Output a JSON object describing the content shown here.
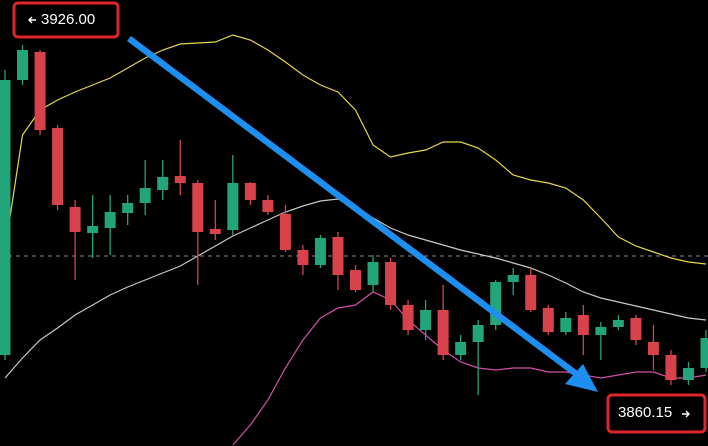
{
  "chart_data": {
    "type": "candlestick",
    "categories": [
      null,
      null,
      null,
      null,
      null,
      null,
      null,
      null,
      null,
      null,
      null,
      null,
      null,
      null,
      null,
      null,
      null,
      null,
      null,
      null,
      null,
      null,
      null,
      null,
      null,
      null,
      null,
      null,
      null,
      null,
      null,
      null,
      null,
      null,
      null,
      null,
      null,
      null,
      null,
      null,
      null
    ],
    "open": [
      3864,
      3919,
      3924.6,
      3909.4,
      3893.6,
      3888.4,
      3889.4,
      3892.4,
      3894.4,
      3897,
      3899.8,
      3898.4,
      3889.2,
      3889,
      3898.4,
      3895,
      3892.2,
      3885,
      3882,
      3887.6,
      3881,
      3878,
      3882.6,
      3874,
      3869,
      3873,
      3864,
      3866.6,
      3870,
      3878.6,
      3880,
      3873.4,
      3868.6,
      3872,
      3868,
      3869.6,
      3871.4,
      3866.6,
      3864,
      3859,
      3861.4
    ],
    "high": [
      3921,
      3926,
      3925,
      3910,
      3895,
      3896,
      3896,
      3896,
      3903,
      3903,
      3907,
      3899,
      3895,
      3904,
      3898.6,
      3896,
      3894,
      3886,
      3888,
      3888.6,
      3882,
      3884,
      3883.4,
      3875,
      3875,
      3878,
      3868,
      3871,
      3879,
      3881.4,
      3881.4,
      3874,
      3872.6,
      3874,
      3870.6,
      3872,
      3872,
      3870,
      3865,
      3862.6,
      3869
    ],
    "low": [
      3863,
      3918,
      3908,
      3893,
      3879,
      3883.4,
      3884,
      3890,
      3892,
      3895,
      3896,
      3878,
      3887,
      3888,
      3894,
      3892,
      3884.6,
      3880,
      3881.4,
      3877,
      3876.6,
      3876.6,
      3873,
      3868,
      3867,
      3863,
      3863,
      3856,
      3869,
      3876,
      3872.6,
      3868,
      3868,
      3864,
      3863,
      3869,
      3866,
      3861,
      3858,
      3858,
      3860.6
    ],
    "close": [
      3919,
      3925,
      3909,
      3894,
      3888.6,
      3889.8,
      3892.6,
      3894.4,
      3897.4,
      3899.6,
      3898.4,
      3888.6,
      3888.2,
      3898.4,
      3895,
      3892.6,
      3885,
      3882,
      3887.4,
      3880,
      3877,
      3882.6,
      3874,
      3869,
      3873,
      3864,
      3866.6,
      3870,
      3878.6,
      3880,
      3873,
      3868.6,
      3871.4,
      3868,
      3869.6,
      3871,
      3867,
      3864,
      3859,
      3861.4,
      3867.4
    ],
    "up_color": "#22a57a",
    "down_color": "#d8434b",
    "lines": [
      {
        "color": "#e3d74a",
        "values": [
          3885,
          3908,
          3913,
          3915,
          3916.6,
          3918,
          3919.4,
          3921.4,
          3923.4,
          3925,
          3926.2,
          3926.4,
          3926.6,
          3928,
          3927,
          3925,
          3922.6,
          3920,
          3918,
          3916.6,
          3913,
          3906,
          3903.6,
          3904.4,
          3905,
          3906.6,
          3906.6,
          3905.4,
          3903,
          3900,
          3899,
          3898.4,
          3897.4,
          3895,
          3891.4,
          3887.6,
          3885.8,
          3884.6,
          3883.4,
          3882.6,
          3882.2
        ]
      },
      {
        "color": "#c8c8c8",
        "values": [
          3859.4,
          3863.4,
          3867,
          3869.4,
          3872,
          3874,
          3876,
          3877.6,
          3879,
          3880.4,
          3881.8,
          3883.8,
          3885.8,
          3887.8,
          3889.4,
          3891,
          3892.6,
          3893.8,
          3894.8,
          3895.2,
          3893.6,
          3891.4,
          3889.4,
          3888,
          3887,
          3886,
          3885,
          3884.2,
          3883.4,
          3882.4,
          3881.4,
          3880,
          3878.4,
          3876.6,
          3875.4,
          3874.6,
          3873.8,
          3873,
          3872.2,
          3871.4,
          3871
        ]
      },
      {
        "color": "#d24fa6",
        "values": [
          null,
          null,
          null,
          null,
          null,
          null,
          null,
          null,
          null,
          null,
          null,
          null,
          null,
          3846,
          3850,
          3855,
          3861.4,
          3867,
          3871.4,
          3873.4,
          3874,
          3876.6,
          3875,
          3871,
          3868,
          3865,
          3862.6,
          3861.4,
          3861,
          3861.4,
          3861.4,
          3860.6,
          3860.6,
          3860,
          3859.4,
          3860,
          3860.6,
          3860.6,
          3859.4,
          3859.4,
          3860
        ]
      }
    ],
    "reference_line": 3883.8,
    "ylim": [
      3845.8,
      3935
    ],
    "annotations": [
      {
        "value": 3926,
        "label": "3926.00"
      },
      {
        "value": 3860.15,
        "label": "3860.15"
      }
    ]
  }
}
